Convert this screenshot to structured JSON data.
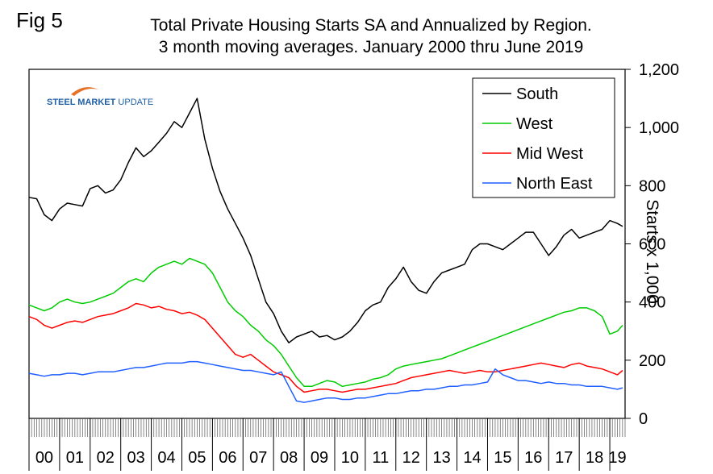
{
  "figure_label": "Fig 5",
  "title_line1": "Total Private Housing Starts SA and Annualized by Region.",
  "title_line2": "3 month moving averages. January 2000 thru June 2019",
  "logo": {
    "part1": "STEEL MARKET",
    "part2": " UPDATE"
  },
  "chart_data": {
    "type": "line",
    "title": "Total Private Housing Starts SA and Annualized by Region. 3 month moving averages. January 2000 thru June 2019",
    "ylabel": "Starts x 1,000",
    "xlabel": "",
    "ylim": [
      0,
      1200
    ],
    "yticks": [
      0,
      200,
      400,
      600,
      800,
      1000,
      1200
    ],
    "ytick_labels": [
      "0",
      "200",
      "400",
      "600",
      "800",
      "1,000",
      "1,200"
    ],
    "y_axis_side": "right",
    "grid": false,
    "legend_position": "top-right",
    "x_categories": [
      "00",
      "01",
      "02",
      "03",
      "04",
      "05",
      "06",
      "07",
      "08",
      "09",
      "10",
      "11",
      "12",
      "13",
      "14",
      "15",
      "16",
      "17",
      "18",
      "19"
    ],
    "x_note": "x values are years since January 2000 (monthly data, Jan 2000 to Jun 2019)",
    "series": [
      {
        "name": "South",
        "color": "#000000",
        "x": [
          0,
          0.25,
          0.5,
          0.75,
          1,
          1.25,
          1.5,
          1.75,
          2,
          2.25,
          2.5,
          2.75,
          3,
          3.25,
          3.5,
          3.75,
          4,
          4.25,
          4.5,
          4.75,
          5,
          5.25,
          5.5,
          5.75,
          6,
          6.25,
          6.5,
          6.75,
          7,
          7.25,
          7.5,
          7.75,
          8,
          8.25,
          8.5,
          8.75,
          9,
          9.25,
          9.5,
          9.75,
          10,
          10.25,
          10.5,
          10.75,
          11,
          11.25,
          11.5,
          11.75,
          12,
          12.25,
          12.5,
          12.75,
          13,
          13.25,
          13.5,
          13.75,
          14,
          14.25,
          14.5,
          14.75,
          15,
          15.25,
          15.5,
          15.75,
          16,
          16.25,
          16.5,
          16.75,
          17,
          17.25,
          17.5,
          17.75,
          18,
          18.25,
          18.5,
          18.75,
          19,
          19.25,
          19.42
        ],
        "y": [
          760,
          755,
          700,
          680,
          720,
          740,
          735,
          730,
          790,
          800,
          775,
          785,
          820,
          880,
          930,
          900,
          920,
          950,
          980,
          1020,
          1000,
          1050,
          1100,
          960,
          860,
          780,
          720,
          670,
          620,
          560,
          480,
          400,
          360,
          300,
          260,
          280,
          290,
          300,
          280,
          285,
          270,
          280,
          300,
          330,
          370,
          390,
          400,
          450,
          480,
          520,
          470,
          440,
          430,
          470,
          500,
          510,
          520,
          530,
          580,
          600,
          600,
          590,
          580,
          600,
          620,
          640,
          640,
          600,
          560,
          590,
          630,
          650,
          620,
          630,
          640,
          650,
          680,
          670,
          660
        ]
      },
      {
        "name": "West",
        "color": "#00cc00",
        "x": [
          0,
          0.25,
          0.5,
          0.75,
          1,
          1.25,
          1.5,
          1.75,
          2,
          2.25,
          2.5,
          2.75,
          3,
          3.25,
          3.5,
          3.75,
          4,
          4.25,
          4.5,
          4.75,
          5,
          5.25,
          5.5,
          5.75,
          6,
          6.25,
          6.5,
          6.75,
          7,
          7.25,
          7.5,
          7.75,
          8,
          8.25,
          8.5,
          8.75,
          9,
          9.25,
          9.5,
          9.75,
          10,
          10.25,
          10.5,
          10.75,
          11,
          11.25,
          11.5,
          11.75,
          12,
          12.25,
          12.5,
          12.75,
          13,
          13.25,
          13.5,
          13.75,
          14,
          14.25,
          14.5,
          14.75,
          15,
          15.25,
          15.5,
          15.75,
          16,
          16.25,
          16.5,
          16.75,
          17,
          17.25,
          17.5,
          17.75,
          18,
          18.25,
          18.5,
          18.75,
          19,
          19.25,
          19.42
        ],
        "y": [
          390,
          380,
          370,
          380,
          400,
          410,
          400,
          395,
          400,
          410,
          420,
          430,
          450,
          470,
          480,
          470,
          500,
          520,
          530,
          540,
          530,
          550,
          540,
          530,
          500,
          450,
          400,
          370,
          350,
          320,
          300,
          270,
          250,
          220,
          180,
          140,
          110,
          110,
          120,
          130,
          125,
          110,
          115,
          120,
          125,
          135,
          140,
          150,
          170,
          180,
          185,
          190,
          195,
          200,
          205,
          215,
          225,
          235,
          245,
          255,
          265,
          275,
          285,
          295,
          305,
          315,
          325,
          335,
          345,
          355,
          365,
          370,
          380,
          380,
          370,
          350,
          290,
          300,
          320
        ]
      },
      {
        "name": "Mid West",
        "color": "#ff0000",
        "x": [
          0,
          0.25,
          0.5,
          0.75,
          1,
          1.25,
          1.5,
          1.75,
          2,
          2.25,
          2.5,
          2.75,
          3,
          3.25,
          3.5,
          3.75,
          4,
          4.25,
          4.5,
          4.75,
          5,
          5.25,
          5.5,
          5.75,
          6,
          6.25,
          6.5,
          6.75,
          7,
          7.25,
          7.5,
          7.75,
          8,
          8.25,
          8.5,
          8.75,
          9,
          9.25,
          9.5,
          9.75,
          10,
          10.25,
          10.5,
          10.75,
          11,
          11.25,
          11.5,
          11.75,
          12,
          12.25,
          12.5,
          12.75,
          13,
          13.25,
          13.5,
          13.75,
          14,
          14.25,
          14.5,
          14.75,
          15,
          15.25,
          15.5,
          15.75,
          16,
          16.25,
          16.5,
          16.75,
          17,
          17.25,
          17.5,
          17.75,
          18,
          18.25,
          18.5,
          18.75,
          19,
          19.25,
          19.42
        ],
        "y": [
          350,
          340,
          320,
          310,
          320,
          330,
          335,
          330,
          340,
          350,
          355,
          360,
          370,
          380,
          395,
          390,
          380,
          385,
          375,
          370,
          360,
          365,
          355,
          340,
          310,
          280,
          250,
          220,
          210,
          220,
          200,
          180,
          160,
          150,
          140,
          110,
          90,
          95,
          100,
          100,
          95,
          90,
          95,
          100,
          100,
          105,
          110,
          115,
          120,
          130,
          140,
          145,
          150,
          155,
          160,
          165,
          160,
          155,
          160,
          165,
          160,
          160,
          165,
          170,
          175,
          180,
          185,
          190,
          185,
          180,
          175,
          185,
          190,
          180,
          175,
          170,
          160,
          150,
          165
        ]
      },
      {
        "name": "North East",
        "color": "#1f5fff",
        "x": [
          0,
          0.25,
          0.5,
          0.75,
          1,
          1.25,
          1.5,
          1.75,
          2,
          2.25,
          2.5,
          2.75,
          3,
          3.25,
          3.5,
          3.75,
          4,
          4.25,
          4.5,
          4.75,
          5,
          5.25,
          5.5,
          5.75,
          6,
          6.25,
          6.5,
          6.75,
          7,
          7.25,
          7.5,
          7.75,
          8,
          8.25,
          8.5,
          8.75,
          9,
          9.25,
          9.5,
          9.75,
          10,
          10.25,
          10.5,
          10.75,
          11,
          11.25,
          11.5,
          11.75,
          12,
          12.25,
          12.5,
          12.75,
          13,
          13.25,
          13.5,
          13.75,
          14,
          14.25,
          14.5,
          14.75,
          15,
          15.25,
          15.5,
          15.75,
          16,
          16.25,
          16.5,
          16.75,
          17,
          17.25,
          17.5,
          17.75,
          18,
          18.25,
          18.5,
          18.75,
          19,
          19.25,
          19.42
        ],
        "y": [
          155,
          150,
          145,
          150,
          150,
          155,
          155,
          150,
          155,
          160,
          160,
          160,
          165,
          170,
          175,
          175,
          180,
          185,
          190,
          190,
          190,
          195,
          195,
          190,
          185,
          180,
          175,
          170,
          165,
          165,
          160,
          155,
          150,
          160,
          110,
          60,
          55,
          60,
          65,
          70,
          70,
          65,
          65,
          70,
          70,
          75,
          80,
          85,
          85,
          90,
          95,
          95,
          100,
          100,
          105,
          110,
          110,
          115,
          115,
          120,
          125,
          170,
          150,
          140,
          130,
          130,
          125,
          120,
          125,
          120,
          120,
          115,
          115,
          110,
          110,
          110,
          105,
          100,
          105
        ]
      }
    ]
  }
}
